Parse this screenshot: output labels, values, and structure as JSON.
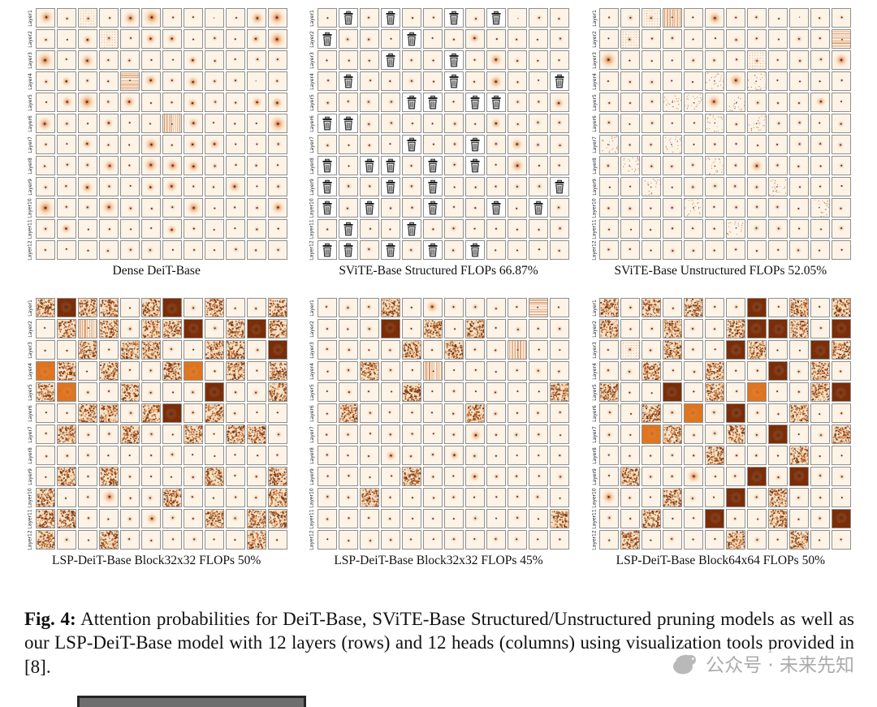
{
  "figure": {
    "caption_label": "Fig. 4:",
    "caption_text": " Attention probabilities for DeiT-Base, SViTE-Base Structured/Unstructured pruning models as well as our LSP-DeiT-Base model with 12 layers (rows) and 12 heads (columns) using visualization tools provided in  [8]."
  },
  "grid_shape": {
    "rows": 12,
    "cols": 12
  },
  "layer_labels": [
    "Layer1",
    "Layer2",
    "Layer3",
    "Layer4",
    "Layer5",
    "Layer6",
    "Layer7",
    "Layer8",
    "Layer9",
    "Layer10",
    "Layer11",
    "Layer12"
  ],
  "cell_legend": {
    "b": "focused attention blob",
    "B": "diffuse attention blob",
    "D": "broad attention cloud",
    "g": "grid-pattern attention map",
    "t": "pruned head (trash icon)",
    "d": "dark saturated attention map",
    "o": "orange saturated attention map",
    "s": "sparse speckled attention map",
    "S": "dense speckled attention map",
    "v": "vertical striped attention map",
    "h": "horizontal striped attention map",
    ".": "near-empty attention map"
  },
  "panels": [
    {
      "caption": "Dense DeiT-Base",
      "grid": [
        "BbgbBDbb.bBD",
        "bbBgbBBbbbBD",
        "DbBbbbbBbbbb",
        "bBbbhBbBbb.b",
        "bBDbBbbBbbBB",
        "BbbBbbvBbbbD",
        "bbBbbBbBBbbb",
        "bbbBbBBBbbbb",
        "bbBbbBBbbBbb",
        "DbbBbbbBbbbB",
        "bBbbbbBbbbbb",
        "bbbbbbbbbbbb"
      ]
    },
    {
      "caption": "SViTE-Base Structured FLOPs 66.87%",
      "grid": [
        "btbtbbtbt.bb",
        "tbbbtbbBbbbb",
        "bbbtbbtbBbbb",
        "btbbbbtbBbbt",
        "bbbbttbttbbB",
        "ttbbbbbbBbbb",
        "bbbbtbbtbBbb",
        "tbttbtbtbBbb",
        "tbbtbtbbbbbt",
        "tbtbbtbbtbtb",
        "btbbtbbbbbbb",
        "ttbtbtbtbbbb"
      ]
    },
    {
      "caption": "SViTE-Base Unstructured FLOPs 52.05%",
      "grid": [
        "bbgvbBbbb.bb",
        "bgbbbbbbbbbh",
        "DbbbbbbgbbbB",
        "bbbbbsBsbbbb",
        "bbbssBsbbbBb",
        "bbbbbsbsbbbb",
        "sbbsbbbbbbbb",
        "bsbbbsbBbbbb",
        "bbsbbbbbsbbb",
        "bbbbsbbbbbsb",
        "bbbbbbsbbbbb",
        "bbbbbbbbbbbb"
      ]
    },
    {
      "caption": "LSP-DeiT-Base Block32x32 FLOPs 50%",
      "grid": [
        "SdSSbSdbSbbS",
        "bSvSbSSdbSdS",
        "bbSbSSbbSSbd",
        "oSbSbbSobSbS",
        "SobbSbbbdbbS",
        "bbSSbSdbSbbb",
        "bSbbSbbSbSSb",
        "bbbbbbbbbbbb",
        "bSbSbbbbSbbS",
        "SbbBbbSbbbbS",
        "SSbbbBbbSbSS",
        "SbbSbbbbbbSb"
      ]
    },
    {
      "caption": "LSP-DeiT-Base Block32x32 FLOPs 45%",
      "grid": [
        "bbbSbBbbbbhb",
        "bbbdbSbSbbbb",
        "bbbbSbSbbvbb",
        "bbSbbvbbbbbb",
        "bbbbSbbbbbbS",
        "bSbbbbbSbbbb",
        "bbbbbbbBbbbb",
        "bbbBbbBbbbbb",
        "bbbbSbbBbbbb",
        "bbSbbbbbbbbb",
        "bbbbbbbbbbbS",
        "bbbbbbbbbbbb"
      ]
    },
    {
      "caption": "LSP-DeiT-Base Block64x64 FLOPs 50%",
      "grid": [
        "SbSbSbbdbSbS",
        "SbbSbbSddSbd",
        "bgbSbbdSbbdS",
        "bbSbbSbbdbSb",
        "SbbdbSbobbSd",
        "bbSbobdbbSbb",
        "bboSbbSbdbbS",
        "bbbbbSbbbSbb",
        "bSbbBbbdbdbb",
        "BbbSbbdbSbbb",
        "bbSbbdbbSbbd",
        "bSbbbbSbbSbb"
      ]
    }
  ],
  "watermark": {
    "text": "公众号 · 未来先知",
    "icon": "publisher-logo"
  },
  "colors": {
    "heat_low": "#fdf4e7",
    "heat_mid": "#e0751f",
    "heat_dark": "#7a2d07",
    "cell_frame": "#8f8f8f",
    "watermark_gray": "#ababab"
  }
}
